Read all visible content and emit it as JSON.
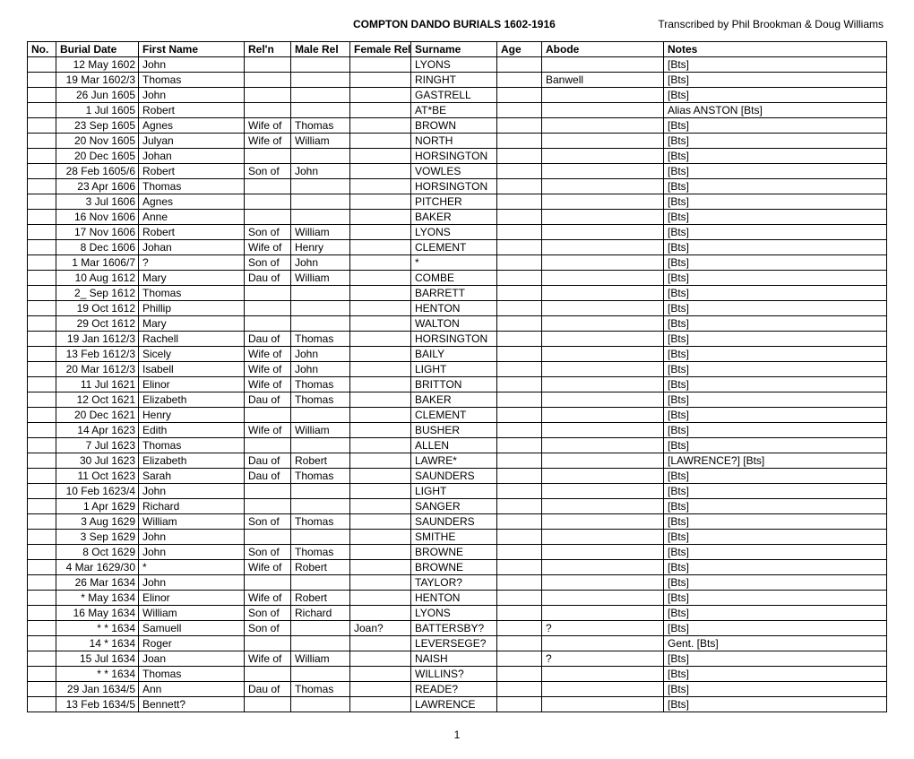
{
  "header": {
    "title": "COMPTON DANDO BURIALS 1602-1916",
    "transcribed": "Transcribed by Phil Brookman & Doug Williams"
  },
  "columns": [
    "No.",
    "Burial Date",
    "First Name",
    "Rel'n",
    "Male Rel",
    "Female Rel",
    "Surname",
    "Age",
    "Abode",
    "Notes"
  ],
  "rows": [
    [
      "",
      "12 May 1602",
      "John",
      "",
      "",
      "",
      "LYONS",
      "",
      "",
      "[Bts]"
    ],
    [
      "",
      "19 Mar 1602/3",
      "Thomas",
      "",
      "",
      "",
      "RINGHT",
      "",
      "Banwell",
      "[Bts]"
    ],
    [
      "",
      "26 Jun 1605",
      "John",
      "",
      "",
      "",
      "GASTRELL",
      "",
      "",
      "[Bts]"
    ],
    [
      "",
      "1 Jul 1605",
      "Robert",
      "",
      "",
      "",
      "AT*BE",
      "",
      "",
      "Alias ANSTON [Bts]"
    ],
    [
      "",
      "23 Sep 1605",
      "Agnes",
      "Wife of",
      "Thomas",
      "",
      "BROWN",
      "",
      "",
      "[Bts]"
    ],
    [
      "",
      "20 Nov 1605",
      "Julyan",
      "Wife of",
      "William",
      "",
      "NORTH",
      "",
      "",
      "[Bts]"
    ],
    [
      "",
      "20 Dec 1605",
      "Johan",
      "",
      "",
      "",
      "HORSINGTON",
      "",
      "",
      "[Bts]"
    ],
    [
      "",
      "28 Feb 1605/6",
      "Robert",
      "Son of",
      "John",
      "",
      "VOWLES",
      "",
      "",
      "[Bts]"
    ],
    [
      "",
      "23 Apr 1606",
      "Thomas",
      "",
      "",
      "",
      "HORSINGTON",
      "",
      "",
      "[Bts]"
    ],
    [
      "",
      "3 Jul 1606",
      "Agnes",
      "",
      "",
      "",
      "PITCHER",
      "",
      "",
      "[Bts]"
    ],
    [
      "",
      "16 Nov 1606",
      "Anne",
      "",
      "",
      "",
      "BAKER",
      "",
      "",
      "[Bts]"
    ],
    [
      "",
      "17 Nov 1606",
      "Robert",
      "Son of",
      "William",
      "",
      "LYONS",
      "",
      "",
      "[Bts]"
    ],
    [
      "",
      "8 Dec 1606",
      "Johan",
      "Wife of",
      "Henry",
      "",
      "CLEMENT",
      "",
      "",
      "[Bts]"
    ],
    [
      "",
      "1 Mar 1606/7",
      "?",
      "Son of",
      "John",
      "",
      "*",
      "",
      "",
      "[Bts]"
    ],
    [
      "",
      "10 Aug 1612",
      "Mary",
      "Dau of",
      "William",
      "",
      "COMBE",
      "",
      "",
      "[Bts]"
    ],
    [
      "",
      "2_ Sep 1612",
      "Thomas",
      "",
      "",
      "",
      "BARRETT",
      "",
      "",
      "[Bts]"
    ],
    [
      "",
      "19 Oct 1612",
      "Phillip",
      "",
      "",
      "",
      "HENTON",
      "",
      "",
      "[Bts]"
    ],
    [
      "",
      "29 Oct 1612",
      "Mary",
      "",
      "",
      "",
      "WALTON",
      "",
      "",
      "[Bts]"
    ],
    [
      "",
      "19 Jan 1612/3",
      "Rachell",
      "Dau of",
      "Thomas",
      "",
      "HORSINGTON",
      "",
      "",
      "[Bts]"
    ],
    [
      "",
      "13 Feb 1612/3",
      "Sicely",
      "Wife of",
      "John",
      "",
      "BAILY",
      "",
      "",
      "[Bts]"
    ],
    [
      "",
      "20 Mar 1612/3",
      "Isabell",
      "Wife of",
      "John",
      "",
      "LIGHT",
      "",
      "",
      "[Bts]"
    ],
    [
      "",
      "11 Jul 1621",
      "Elinor",
      "Wife of",
      "Thomas",
      "",
      "BRITTON",
      "",
      "",
      "[Bts]"
    ],
    [
      "",
      "12 Oct 1621",
      "Elizabeth",
      "Dau of",
      "Thomas",
      "",
      "BAKER",
      "",
      "",
      "[Bts]"
    ],
    [
      "",
      "20 Dec 1621",
      "Henry",
      "",
      "",
      "",
      "CLEMENT",
      "",
      "",
      "[Bts]"
    ],
    [
      "",
      "14 Apr 1623",
      "Edith",
      "Wife of",
      "William",
      "",
      "BUSHER",
      "",
      "",
      "[Bts]"
    ],
    [
      "",
      "7 Jul 1623",
      "Thomas",
      "",
      "",
      "",
      "ALLEN",
      "",
      "",
      "[Bts]"
    ],
    [
      "",
      "30 Jul 1623",
      "Elizabeth",
      "Dau of",
      "Robert",
      "",
      "LAWRE*",
      "",
      "",
      "[LAWRENCE?] [Bts]"
    ],
    [
      "",
      "11 Oct 1623",
      "Sarah",
      "Dau of",
      "Thomas",
      "",
      "SAUNDERS",
      "",
      "",
      "[Bts]"
    ],
    [
      "",
      "10 Feb 1623/4",
      "John",
      "",
      "",
      "",
      "LIGHT",
      "",
      "",
      "[Bts]"
    ],
    [
      "",
      "1 Apr 1629",
      "Richard",
      "",
      "",
      "",
      "SANGER",
      "",
      "",
      "[Bts]"
    ],
    [
      "",
      "3 Aug 1629",
      "William",
      "Son of",
      "Thomas",
      "",
      "SAUNDERS",
      "",
      "",
      "[Bts]"
    ],
    [
      "",
      "3 Sep 1629",
      "John",
      "",
      "",
      "",
      "SMITHE",
      "",
      "",
      "[Bts]"
    ],
    [
      "",
      "8 Oct 1629",
      "John",
      "Son of",
      "Thomas",
      "",
      "BROWNE",
      "",
      "",
      "[Bts]"
    ],
    [
      "",
      "4 Mar 1629/30",
      "*",
      "Wife of",
      "Robert",
      "",
      "BROWNE",
      "",
      "",
      "[Bts]"
    ],
    [
      "",
      "26 Mar 1634",
      "John",
      "",
      "",
      "",
      "TAYLOR?",
      "",
      "",
      "[Bts]"
    ],
    [
      "",
      "* May 1634",
      "Elinor",
      "Wife of",
      "Robert",
      "",
      "HENTON",
      "",
      "",
      "[Bts]"
    ],
    [
      "",
      "16 May 1634",
      "William",
      "Son of",
      "Richard",
      "",
      "LYONS",
      "",
      "",
      "[Bts]"
    ],
    [
      "",
      "* * 1634",
      "Samuell",
      "Son of",
      "",
      "Joan?",
      "BATTERSBY?",
      "",
      "?",
      "[Bts]"
    ],
    [
      "",
      "14 * 1634",
      "Roger",
      "",
      "",
      "",
      "LEVERSEGE?",
      "",
      "",
      "Gent. [Bts]"
    ],
    [
      "",
      "15 Jul 1634",
      "Joan",
      "Wife of",
      "William",
      "",
      "NAISH",
      "",
      "?",
      "[Bts]"
    ],
    [
      "",
      "* * 1634",
      "Thomas",
      "",
      "",
      "",
      "WILLINS?",
      "",
      "",
      "[Bts]"
    ],
    [
      "",
      "29 Jan 1634/5",
      "Ann",
      "Dau of",
      "Thomas",
      "",
      "READE?",
      "",
      "",
      "[Bts]"
    ],
    [
      "",
      "13 Feb 1634/5",
      "Bennett?",
      "",
      "",
      "",
      "LAWRENCE",
      "",
      "",
      "[Bts]"
    ]
  ],
  "pageNumber": "1"
}
